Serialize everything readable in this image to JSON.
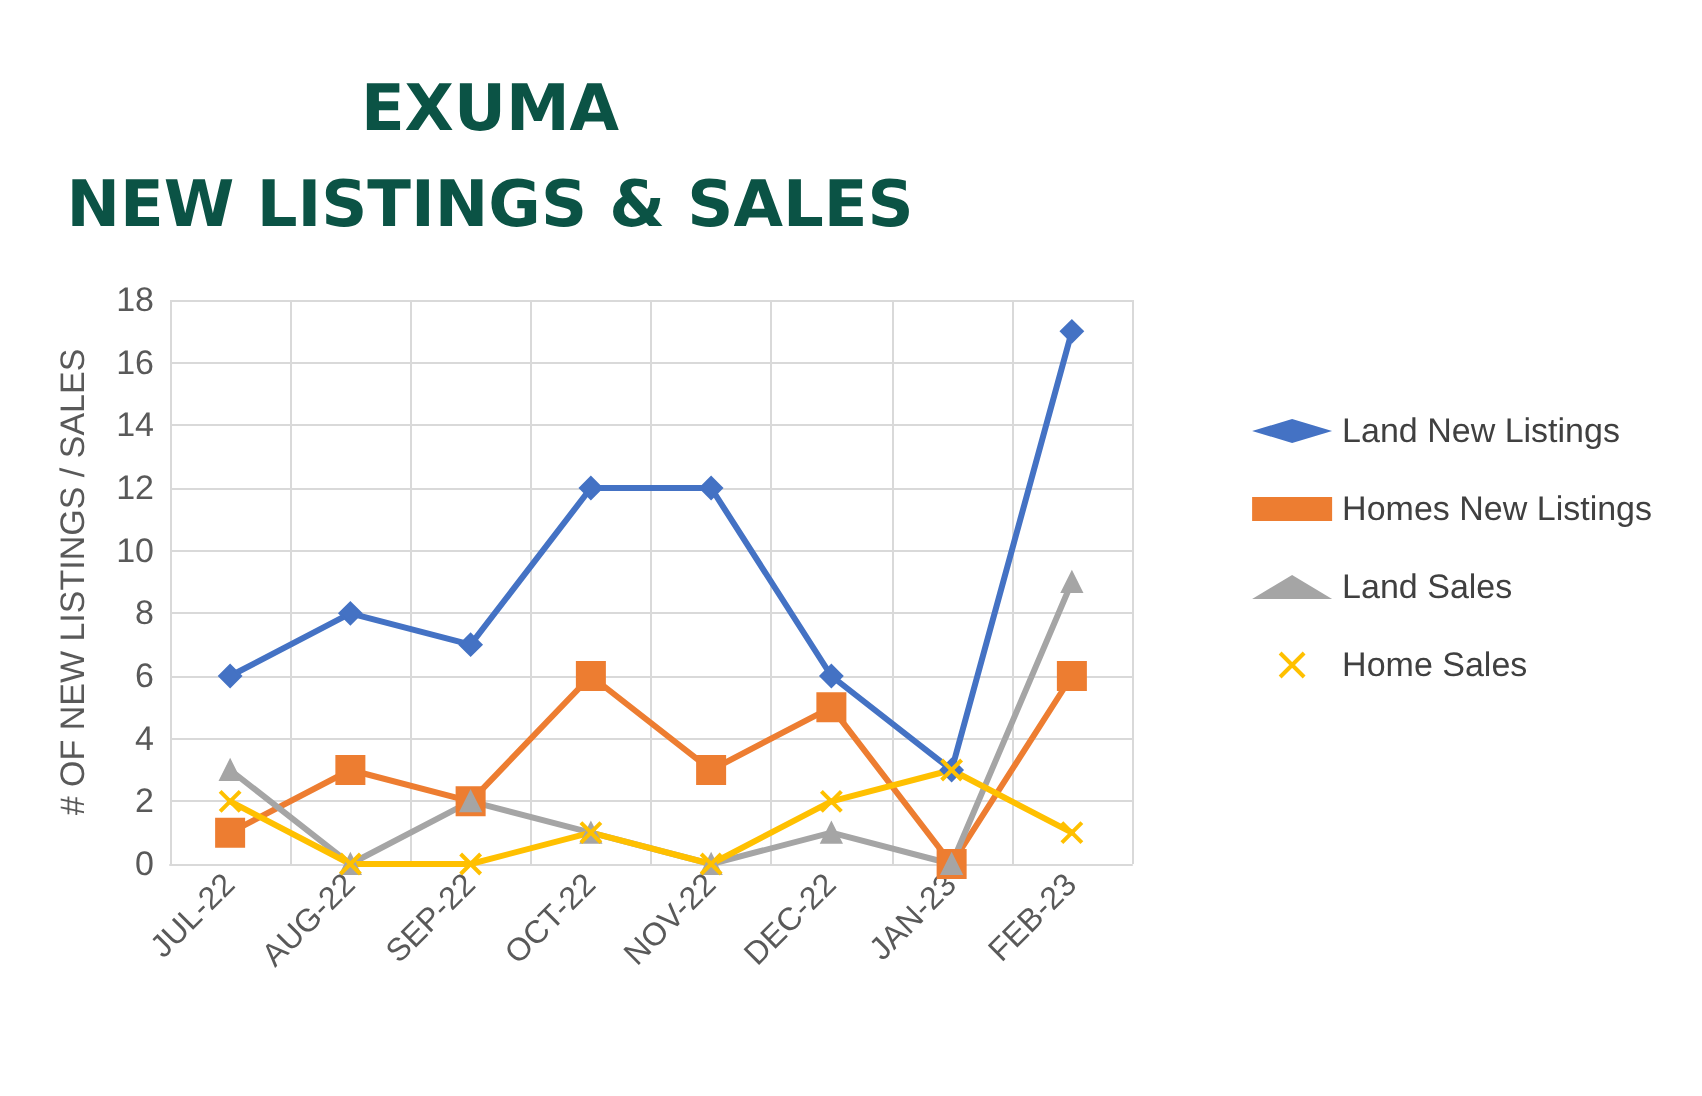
{
  "chart_data": {
    "type": "line",
    "title": "EXUMA\nNEW LISTINGS & SALES",
    "ylabel": "# OF NEW LISTINGS / SALES",
    "categories": [
      "JUL-22",
      "AUG-22",
      "SEP-22",
      "OCT-22",
      "NOV-22",
      "DEC-22",
      "JAN-23",
      "FEB-23"
    ],
    "series": [
      {
        "name": "Land New Listings",
        "color": "#4472c4",
        "marker": "diamond",
        "values": [
          6,
          8,
          7,
          12,
          12,
          6,
          3,
          17
        ]
      },
      {
        "name": "Homes New Listings",
        "color": "#ed7d31",
        "marker": "square",
        "values": [
          1,
          3,
          2,
          6,
          3,
          5,
          0,
          6
        ]
      },
      {
        "name": "Land Sales",
        "color": "#a5a5a5",
        "marker": "triangle",
        "values": [
          3,
          0,
          2,
          1,
          0,
          1,
          0,
          9
        ]
      },
      {
        "name": "Home Sales",
        "color": "#ffc000",
        "marker": "cross",
        "values": [
          2,
          0,
          0,
          1,
          0,
          2,
          3,
          1
        ]
      }
    ],
    "ylim": [
      0,
      18
    ],
    "yticks": [
      0,
      2,
      4,
      6,
      8,
      10,
      12,
      14,
      16,
      18
    ],
    "grid": true,
    "legend": "right",
    "line_style": "solid"
  }
}
